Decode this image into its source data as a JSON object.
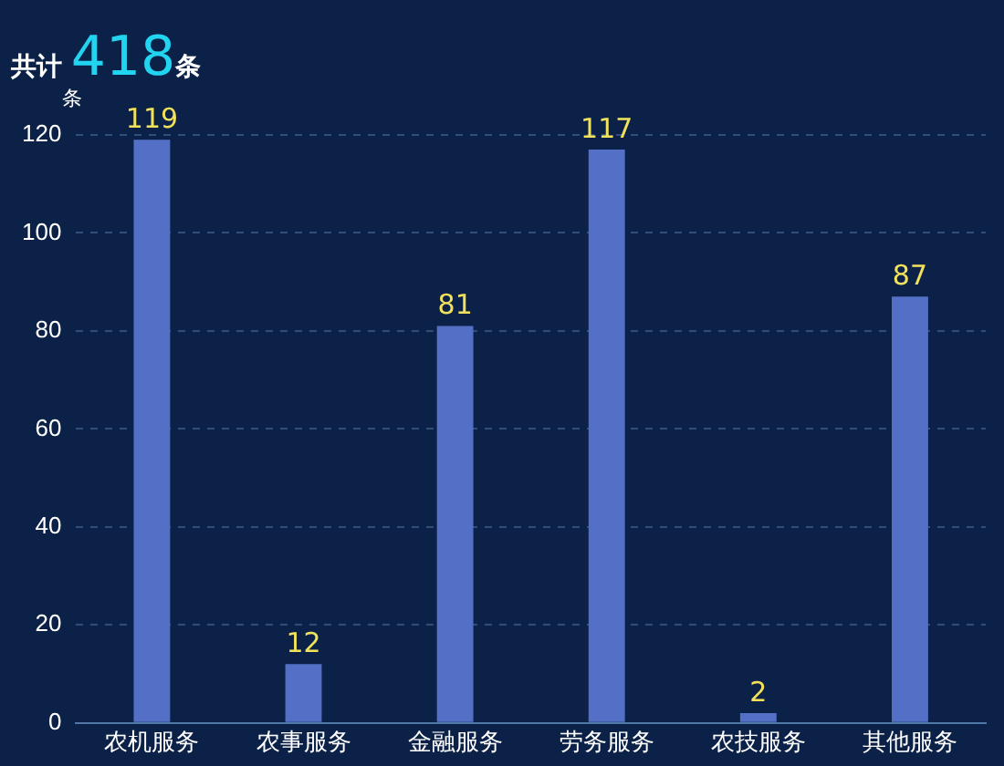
{
  "chart_data": {
    "type": "bar",
    "title": "共计 418条",
    "ylabel": "条",
    "categories": [
      "农机服务",
      "农事服务",
      "金融服务",
      "劳务服务",
      "农技服务",
      "其他服务"
    ],
    "values": [
      119,
      12,
      81,
      117,
      2,
      87
    ],
    "color": "#5470c6",
    "ylim": [
      0,
      120
    ],
    "yticks": [
      0,
      20,
      40,
      60,
      80,
      100,
      120
    ],
    "grid": "y",
    "data_labels": true
  }
}
